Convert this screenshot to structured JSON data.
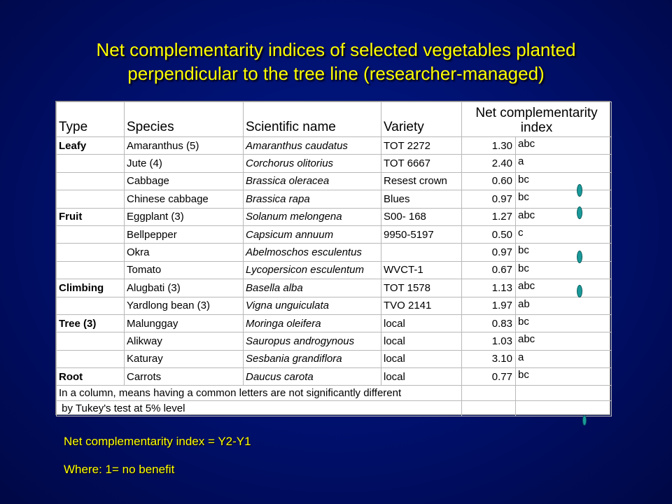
{
  "slide": {
    "title_line1": "Net complementarity indices of selected vegetables planted",
    "title_line2": "perpendicular to the tree line (researcher-managed)"
  },
  "table": {
    "headers": {
      "type": "Type",
      "species": "Species",
      "scientific": "Scientific name",
      "variety": "Variety",
      "nci_line1": "Net complementarity",
      "nci_line2": "index"
    },
    "rows": [
      {
        "type": "Leafy",
        "species": "Amaranthus (5)",
        "scientific": "Amaranthus caudatus",
        "variety": "TOT 2272",
        "value": "1.30",
        "letters": "abc"
      },
      {
        "type": "",
        "species": "Jute (4)",
        "scientific": "Corchorus olitorius",
        "variety": "TOT 6667",
        "value": "2.40",
        "letters": "a"
      },
      {
        "type": "",
        "species": "Cabbage",
        "scientific": "Brassica oleracea",
        "variety": "Resest crown",
        "value": "0.60",
        "letters": "bc"
      },
      {
        "type": "",
        "species": "Chinese cabbage",
        "scientific": "Brassica rapa",
        "variety": "Blues",
        "value": "0.97",
        "letters": "bc"
      },
      {
        "type": "Fruit",
        "species": "Eggplant (3)",
        "scientific": "Solanum melongena",
        "variety": "S00- 168",
        "value": "1.27",
        "letters": "abc"
      },
      {
        "type": "",
        "species": "Bellpepper",
        "scientific": "Capsicum annuum",
        "variety": "9950-5197",
        "value": "0.50",
        "letters": "c"
      },
      {
        "type": "",
        "species": "Okra",
        "scientific": "Abelmoschos esculentus",
        "variety": "",
        "value": "0.97",
        "letters": "bc"
      },
      {
        "type": "",
        "species": "Tomato",
        "scientific": "Lycopersicon esculentum",
        "variety": "WVCT-1",
        "value": "0.67",
        "letters": "bc"
      },
      {
        "type": "Climbing",
        "species": "Alugbati (3)",
        "scientific": "Basella alba",
        "variety": "TOT 1578",
        "value": "1.13",
        "letters": "abc"
      },
      {
        "type": "",
        "species": "Yardlong bean (3)",
        "scientific": "Vigna unguiculata",
        "variety": "TVO 2141",
        "value": "1.97",
        "letters": "ab"
      },
      {
        "type": "Tree (3)",
        "species": "Malunggay",
        "scientific": "Moringa oleifera",
        "variety": "local",
        "value": "0.83",
        "letters": "bc"
      },
      {
        "type": "",
        "species": "Alikway",
        "scientific": "Sauropus androgynous",
        "variety": "local",
        "value": "1.03",
        "letters": "abc"
      },
      {
        "type": "",
        "species": "Katuray",
        "scientific": "Sesbania grandiflora",
        "variety": "local",
        "value": "3.10",
        "letters": "a"
      },
      {
        "type": "Root",
        "species": "Carrots",
        "scientific": "Daucus carota",
        "variety": "local",
        "value": "0.77",
        "letters": "bc"
      }
    ],
    "note_line1": "In a column, means having a common letters are not significantly different",
    "note_line2": " by Tukey's test at 5% level"
  },
  "footer": {
    "formula": "Net complementarity index = Y2-Y1",
    "where": "Where: 1= no benefit"
  },
  "colors": {
    "background": "#000f6a",
    "title": "#ffff00",
    "marker": "#1a9a9a"
  }
}
